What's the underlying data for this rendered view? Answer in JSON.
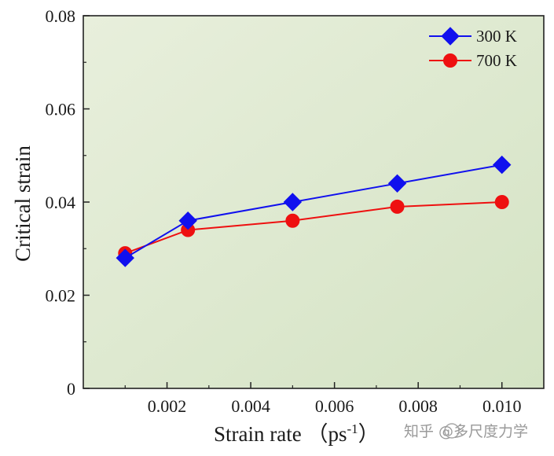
{
  "chart_data": {
    "type": "line",
    "title": "",
    "xlabel": "Strain rate （ps",
    "xlabel_sup": "-1",
    "xlabel_close": "）",
    "ylabel": "Critical strain",
    "xlim": [
      0.0,
      0.011
    ],
    "ylim": [
      0.0,
      0.08
    ],
    "xticks": [
      0.002,
      0.004,
      0.006,
      0.008,
      0.01
    ],
    "xtick_labels": [
      "0.002",
      "0.004",
      "0.006",
      "0.008",
      "0.010"
    ],
    "yticks": [
      0.0,
      0.02,
      0.04,
      0.06,
      0.08
    ],
    "ytick_labels": [
      "0",
      "0.02",
      "0.04",
      "0.06",
      "0.08"
    ],
    "grid": false,
    "legend_position": "top-right",
    "background_gradient": [
      "#e8efdc",
      "#d4e3c4"
    ],
    "series": [
      {
        "name": "300 K",
        "marker": "diamond",
        "color": "#1010ee",
        "x": [
          0.001,
          0.0025,
          0.005,
          0.0075,
          0.01
        ],
        "y": [
          0.028,
          0.036,
          0.04,
          0.044,
          0.048
        ]
      },
      {
        "name": "700 K",
        "marker": "circle",
        "color": "#ee1010",
        "x": [
          0.001,
          0.0025,
          0.005,
          0.0075,
          0.01
        ],
        "y": [
          0.029,
          0.034,
          0.036,
          0.039,
          0.04
        ]
      }
    ]
  },
  "watermark": {
    "text": "知乎 @多尺度力学"
  }
}
